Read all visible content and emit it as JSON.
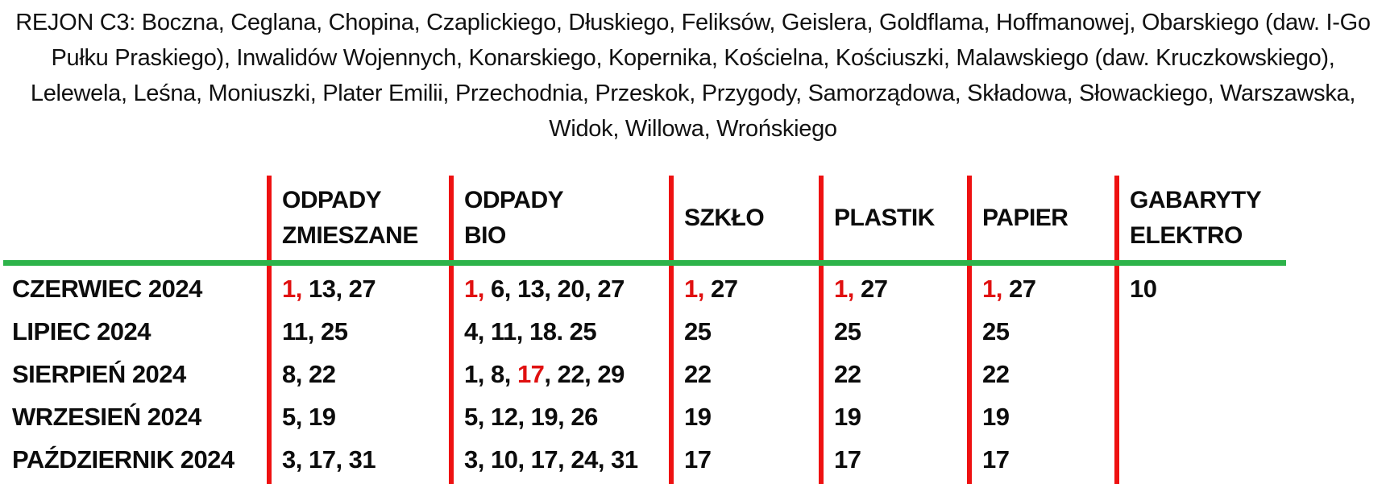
{
  "region_header": {
    "lines": [
      "REJON C3: Boczna, Ceglana, Chopina, Czaplickiego, Dłuskiego, Feliksów, Geislera, Goldflama, Hoffmanowej, Obarskiego (daw. I-Go",
      "Pułku Praskiego), Inwalidów Wojennych, Konarskiego, Kopernika, Kościelna, Kościuszki, Malawskiego (daw. Kruczkowskiego),",
      "Lelewela, Leśna, Moniuszki, Plater Emilii, Przechodnia, Przeskok, Przygody, Samorządowa, Składowa, Słowackiego, Warszawska,",
      "Widok, Willowa, Wrońskiego"
    ]
  },
  "colors": {
    "divider_red": "#ee1111",
    "highlight_red": "#e01010",
    "separator_green": "#2db34a"
  },
  "schedule_table": {
    "columns": [
      {
        "label_lines": [
          "ODPADY",
          "ZMIESZANE"
        ]
      },
      {
        "label_lines": [
          "ODPADY",
          "BIO"
        ]
      },
      {
        "label_lines": [
          "SZKŁO"
        ]
      },
      {
        "label_lines": [
          "PLASTIK"
        ]
      },
      {
        "label_lines": [
          "PAPIER"
        ]
      },
      {
        "label_lines": [
          "GABARYTY",
          "ELEKTRO"
        ]
      }
    ],
    "rows": [
      {
        "month": "CZERWIEC 2024",
        "cells": [
          [
            {
              "t": "1,",
              "red": true
            },
            {
              "t": " 13, 27"
            }
          ],
          [
            {
              "t": "1,",
              "red": true
            },
            {
              "t": " 6, 13, 20, 27"
            }
          ],
          [
            {
              "t": "1,",
              "red": true
            },
            {
              "t": " 27"
            }
          ],
          [
            {
              "t": "1,",
              "red": true
            },
            {
              "t": " 27"
            }
          ],
          [
            {
              "t": "1,",
              "red": true
            },
            {
              "t": " 27"
            }
          ],
          [
            {
              "t": "10"
            }
          ]
        ]
      },
      {
        "month": "LIPIEC 2024",
        "cells": [
          [
            {
              "t": "11, 25"
            }
          ],
          [
            {
              "t": "4, 11, 18. 25"
            }
          ],
          [
            {
              "t": "25"
            }
          ],
          [
            {
              "t": "25"
            }
          ],
          [
            {
              "t": "25"
            }
          ],
          []
        ]
      },
      {
        "month": "SIERPIEŃ 2024",
        "cells": [
          [
            {
              "t": "8, 22"
            }
          ],
          [
            {
              "t": "1, 8, "
            },
            {
              "t": "17",
              "red": true
            },
            {
              "t": ", 22, 29"
            }
          ],
          [
            {
              "t": "22"
            }
          ],
          [
            {
              "t": "22"
            }
          ],
          [
            {
              "t": "22"
            }
          ],
          []
        ]
      },
      {
        "month": "WRZESIEŃ 2024",
        "cells": [
          [
            {
              "t": "5, 19"
            }
          ],
          [
            {
              "t": "5, 12, 19, 26"
            }
          ],
          [
            {
              "t": "19"
            }
          ],
          [
            {
              "t": "19"
            }
          ],
          [
            {
              "t": "19"
            }
          ],
          []
        ]
      },
      {
        "month": "PAŹDZIERNIK 2024",
        "cells": [
          [
            {
              "t": "3, 17, 31"
            }
          ],
          [
            {
              "t": "3, 10, 17, 24, 31"
            }
          ],
          [
            {
              "t": "17"
            }
          ],
          [
            {
              "t": "17"
            }
          ],
          [
            {
              "t": "17"
            }
          ],
          []
        ]
      }
    ]
  }
}
